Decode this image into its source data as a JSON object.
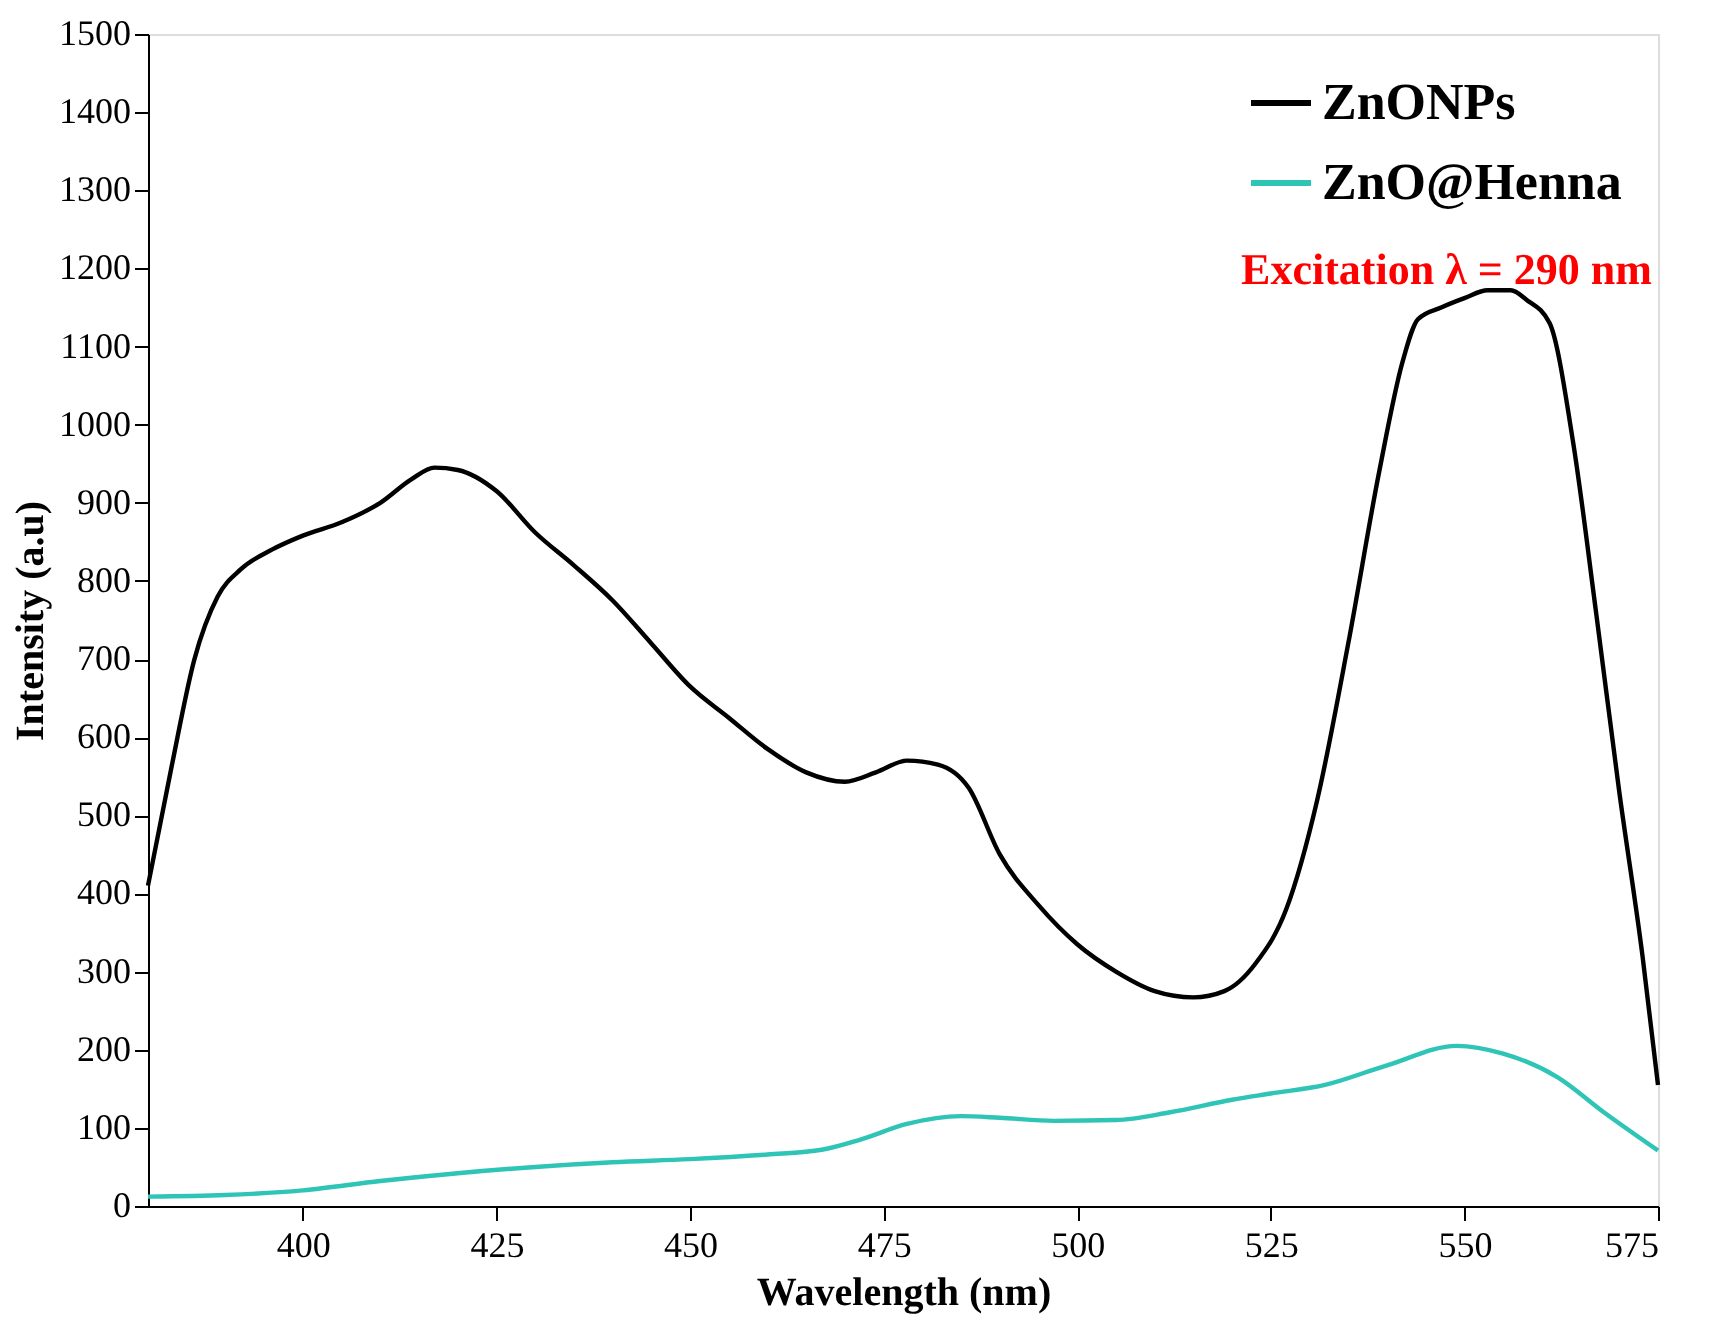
{
  "chart_data": {
    "type": "line",
    "xlabel": "Wavelength (nm)",
    "ylabel": "Intensity (a.u)",
    "xlim": [
      380,
      575
    ],
    "xticks": [
      400,
      425,
      450,
      475,
      500,
      525,
      550,
      575
    ],
    "ylim": [
      0,
      1500
    ],
    "yticks": [
      0,
      100,
      200,
      300,
      400,
      500,
      600,
      700,
      800,
      900,
      1000,
      1100,
      1200,
      1300,
      1400,
      1500
    ],
    "grid": false,
    "legend": "top right",
    "line_style": "solid",
    "marker": "none",
    "annotations": [
      "Excitation λ = 290 nm"
    ],
    "series": [
      {
        "name": "ZnONPs",
        "color": "#000000",
        "x": [
          380,
          383,
          386,
          389,
          392,
          396,
          400,
          405,
          410,
          414,
          417,
          420,
          425,
          430,
          435,
          440,
          445,
          450,
          455,
          460,
          465,
          470,
          474,
          478,
          482,
          486,
          490,
          495,
          500,
          505,
          510,
          515,
          519,
          523,
          527,
          531,
          535,
          539,
          542,
          544,
          547,
          550,
          553,
          556,
          558,
          561,
          564,
          567,
          570,
          573,
          575
        ],
        "values": [
          410,
          560,
          700,
          780,
          815,
          840,
          858,
          875,
          900,
          930,
          945,
          942,
          915,
          862,
          820,
          775,
          720,
          665,
          625,
          585,
          555,
          543,
          555,
          570,
          565,
          535,
          450,
          385,
          335,
          300,
          275,
          267,
          275,
          310,
          380,
          520,
          720,
          940,
          1080,
          1135,
          1150,
          1162,
          1172,
          1172,
          1160,
          1130,
          980,
          760,
          530,
          320,
          155
        ]
      },
      {
        "name": "ZnO@Henna",
        "color": "#2ec4b6",
        "x": [
          380,
          390,
          400,
          410,
          420,
          430,
          440,
          450,
          460,
          467,
          472,
          478,
          485,
          490,
          497,
          505,
          512,
          520,
          525,
          532,
          540,
          549,
          555,
          562,
          568,
          575
        ],
        "values": [
          12,
          14,
          20,
          32,
          42,
          50,
          56,
          60,
          66,
          72,
          85,
          105,
          115,
          113,
          109,
          110,
          120,
          136,
          144,
          155,
          180,
          205,
          195,
          165,
          120,
          71
        ]
      }
    ]
  }
}
